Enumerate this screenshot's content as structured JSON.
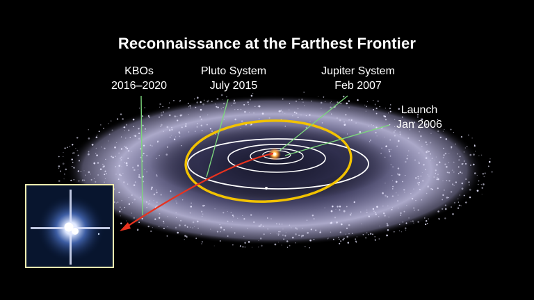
{
  "title": "Reconnaissance at the Farthest Frontier",
  "labels": {
    "kbo": {
      "line1": "KBOs",
      "line2": "2016–2020"
    },
    "pluto": {
      "line1": "Pluto System",
      "line2": "July 2015"
    },
    "jupiter": {
      "line1": "Jupiter System",
      "line2": "Feb 2007"
    },
    "launch": {
      "line1": "Launch",
      "line2": "Jan 2006"
    }
  },
  "colors": {
    "background": "#000000",
    "kuiper_belt": "#c8c4e8",
    "pluto_orbit": "#f2c200",
    "planet_orbits": "#ffffff",
    "trajectory": "#e8321e",
    "pointer_lines": "#7cd67c",
    "inset_border": "#f4efb0"
  },
  "icons": {
    "sun": "sun-icon",
    "trajectory_arrow": "arrow-icon",
    "pluto_image": "pluto-charon-image"
  }
}
